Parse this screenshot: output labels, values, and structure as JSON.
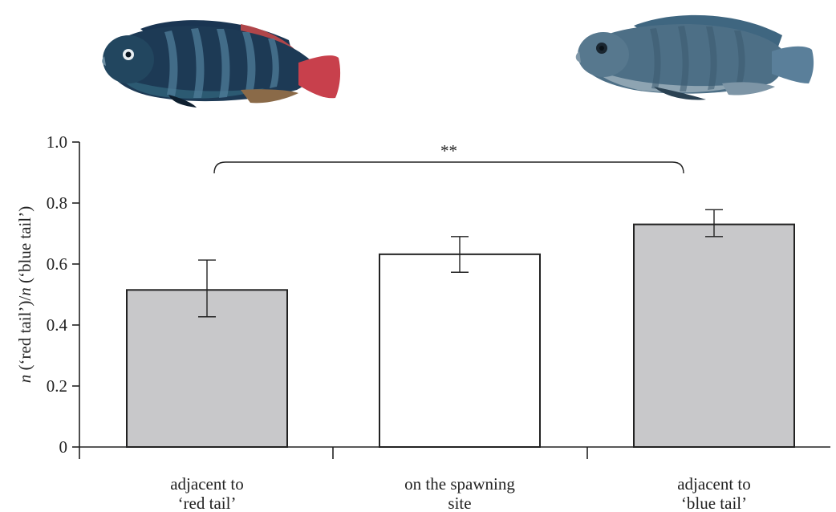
{
  "chart_data": {
    "type": "bar",
    "categories": [
      [
        "adjacent to",
        "‘red tail’"
      ],
      [
        "on the spawning",
        "site"
      ],
      [
        "adjacent to",
        "‘blue tail’"
      ]
    ],
    "values": [
      0.515,
      0.632,
      0.73
    ],
    "error_low": [
      0.427,
      0.573,
      0.69
    ],
    "error_high": [
      0.613,
      0.69,
      0.778
    ],
    "bar_colors": [
      "#c8c8ca",
      "#ffffff",
      "#c8c8ca"
    ],
    "ylabel_parts": [
      "n",
      " (‘red tail’)/",
      "n",
      " (‘blue tail’)"
    ],
    "ylim": [
      0,
      1.0
    ],
    "yticks": [
      0,
      0.2,
      0.4,
      0.6,
      0.8,
      1.0
    ],
    "ytick_labels": [
      "0",
      "0.2",
      "0.4",
      "0.6",
      "0.8",
      "1.0"
    ],
    "significance": {
      "from": 0,
      "to": 2,
      "label": "**"
    },
    "grid": false
  },
  "images": {
    "left_fish": {
      "description_icon": "red-tail-fish-icon",
      "body_color": "#1d3a55",
      "tail_color": "#c8404c"
    },
    "right_fish": {
      "description_icon": "blue-tail-fish-icon",
      "body_color": "#4d6f86",
      "tail_color": "#5a7f9a"
    }
  }
}
